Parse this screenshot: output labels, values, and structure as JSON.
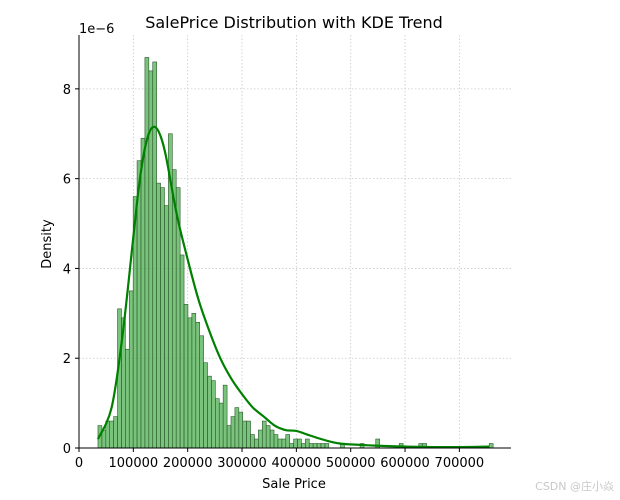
{
  "watermark": "CSDN @庄小焱",
  "chart_data": {
    "type": "bar",
    "title": "SalePrice Distribution with KDE Trend",
    "xlabel": "Sale Price",
    "ylabel": "Density",
    "y_offset_label": "1e−6",
    "xlim": [
      0,
      795000
    ],
    "ylim": [
      0,
      9.2
    ],
    "x_ticks": [
      0,
      100000,
      200000,
      300000,
      400000,
      500000,
      600000,
      700000
    ],
    "y_ticks": [
      0,
      2,
      4,
      6,
      8
    ],
    "grid": true,
    "bar_color": "#4caf50",
    "bar_edge_color": "#2d5a2d",
    "kde_color": "#008000",
    "histogram": {
      "bin_start": 34900,
      "bin_width": 7200,
      "density_values": [
        0.5,
        0.4,
        0.6,
        0.6,
        0.7,
        3.1,
        2.9,
        2.2,
        3.5,
        5.6,
        6.4,
        6.9,
        8.7,
        8.4,
        8.6,
        5.9,
        5.8,
        5.4,
        7.0,
        6.2,
        5.8,
        4.3,
        3.2,
        2.9,
        3.0,
        2.8,
        2.5,
        1.9,
        1.6,
        1.5,
        1.1,
        1.0,
        1.4,
        0.5,
        0.7,
        0.9,
        0.8,
        0.6,
        0.6,
        0.3,
        0.2,
        0.4,
        0.6,
        0.5,
        0.4,
        0.3,
        0.2,
        0.2,
        0.3,
        0.1,
        0.2,
        0.2,
        0.1,
        0.2,
        0.1,
        0.1,
        0.1,
        0.1,
        0.1,
        0.0,
        0.0,
        0.0,
        0.1,
        0.0,
        0.0,
        0.0,
        0.0,
        0.1,
        0.0,
        0.0,
        0.0,
        0.2,
        0.0,
        0.0,
        0.0,
        0.0,
        0.0,
        0.1,
        0.0,
        0.0,
        0.0,
        0.0,
        0.1,
        0.1,
        0.0,
        0.0,
        0.0,
        0.0,
        0.0,
        0.0,
        0.0,
        0.0,
        0.0,
        0.0,
        0.0,
        0.0,
        0.0,
        0.0,
        0.0,
        0.0,
        0.1
      ]
    },
    "kde": {
      "x": [
        34900,
        60000,
        80000,
        100000,
        110000,
        120000,
        130000,
        140000,
        150000,
        160000,
        180000,
        200000,
        220000,
        240000,
        260000,
        280000,
        300000,
        320000,
        340000,
        360000,
        380000,
        400000,
        420000,
        440000,
        460000,
        480000,
        500000,
        550000,
        600000,
        650000,
        700000,
        755000
      ],
      "y": [
        0.2,
        0.9,
        2.5,
        4.7,
        5.8,
        6.6,
        7.05,
        7.15,
        6.95,
        6.5,
        5.2,
        4.2,
        3.3,
        2.6,
        2.0,
        1.55,
        1.2,
        0.9,
        0.7,
        0.5,
        0.4,
        0.38,
        0.3,
        0.22,
        0.15,
        0.1,
        0.08,
        0.05,
        0.03,
        0.02,
        0.02,
        0.03
      ]
    }
  }
}
